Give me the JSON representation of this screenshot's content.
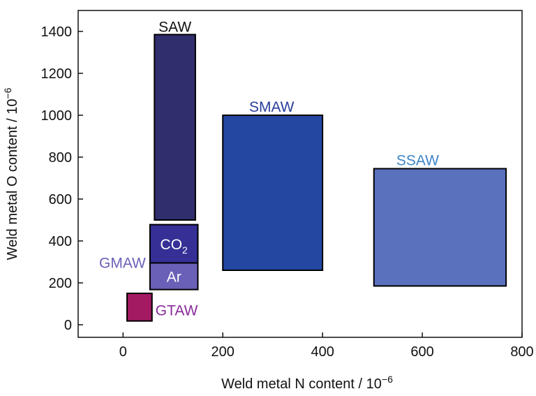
{
  "chart_data": {
    "type": "rectangles",
    "xlabel_main": "Weld metal N content / 10",
    "xlabel_exp": "−6",
    "ylabel_main": "Weld metal O content / 10",
    "ylabel_exp": "−6",
    "xlim": [
      -90,
      800
    ],
    "ylim": [
      -60,
      1500
    ],
    "xticks": [
      0,
      200,
      400,
      600,
      800
    ],
    "yticks": [
      0,
      200,
      400,
      600,
      800,
      1000,
      1200,
      1400
    ],
    "xtick_labels": [
      "0",
      "200",
      "400",
      "600",
      "800"
    ],
    "ytick_labels": [
      "0",
      "200",
      "400",
      "600",
      "800",
      "1000",
      "1200",
      "1400"
    ],
    "grid": false,
    "regions": [
      {
        "name": "SAW",
        "x": [
          63,
          145
        ],
        "y": [
          500,
          1385
        ],
        "fill": "#312e6e",
        "label_color": "#111111"
      },
      {
        "name": "SMAW",
        "x": [
          200,
          400
        ],
        "y": [
          260,
          1000
        ],
        "fill": "#2447a2",
        "label_color": "#2a3d9a"
      },
      {
        "name": "SSAW",
        "x": [
          503,
          768
        ],
        "y": [
          185,
          745
        ],
        "fill": "#5a71be",
        "label_color": "#3e86c8"
      },
      {
        "name": "CO2",
        "x": [
          54,
          150
        ],
        "y": [
          295,
          478
        ],
        "fill": "#352f96",
        "label_color": "#ffffff"
      },
      {
        "name": "Ar",
        "x": [
          54,
          150
        ],
        "y": [
          168,
          295
        ],
        "fill": "#6a60b8",
        "label_color": "#ffffff"
      },
      {
        "name": "GTAW",
        "x": [
          8,
          58
        ],
        "y": [
          18,
          150
        ],
        "fill": "#a31a63",
        "label_color": "#8a2a9a"
      }
    ],
    "annotations": [
      {
        "text": "GMAW",
        "color": "#6a62b8"
      }
    ]
  }
}
